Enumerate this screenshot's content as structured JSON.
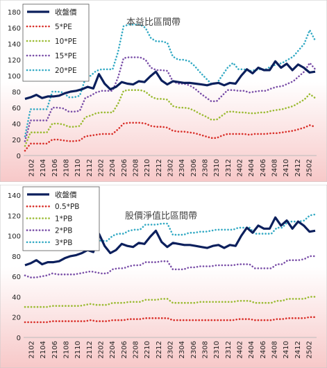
{
  "colors": {
    "background_gradient_top": "#ffffff",
    "background_gradient_bottom": "#f7c8c8",
    "price": "#0b1f5c",
    "band_1": "#d9302a",
    "band_2": "#9bbb33",
    "band_3": "#7a4fa8",
    "band_4": "#34aac4"
  },
  "chart_data": [
    {
      "type": "line",
      "title": "本益比區間帶",
      "ylim": [
        0,
        180
      ],
      "yticks": [
        0,
        20,
        40,
        60,
        80,
        100,
        120,
        140,
        160,
        180
      ],
      "xtick_labels": [
        "2102",
        "2104",
        "2106",
        "2108",
        "2110",
        "2112",
        "2202",
        "2204",
        "2206",
        "2208",
        "2210",
        "2212",
        "2302",
        "2304",
        "2306",
        "2308",
        "2310",
        "2312",
        "2402",
        "2404",
        "2406",
        "2408",
        "2410",
        "2412",
        "2502"
      ],
      "legend": [
        "收盤價",
        "5*PE",
        "10*PE",
        "15*PE",
        "20*PE"
      ],
      "series": [
        {
          "name": "收盤價",
          "style": "solid",
          "values": [
            71,
            73,
            76,
            72,
            74,
            74,
            75,
            78,
            80,
            81,
            83,
            86,
            84,
            102,
            90,
            83,
            86,
            92,
            90,
            89,
            93,
            92,
            99,
            105,
            94,
            89,
            93,
            92,
            91,
            91,
            90,
            89,
            88,
            90,
            91,
            88,
            91,
            90,
            100,
            108,
            103,
            110,
            107,
            107,
            118,
            110,
            115,
            107,
            114,
            110,
            104,
            105
          ]
        },
        {
          "name": "5*PE",
          "style": "dotted",
          "values": [
            6,
            15,
            15,
            15,
            15,
            20,
            20,
            19,
            18,
            18,
            19,
            24,
            25,
            26,
            27,
            27,
            27,
            33,
            40,
            41,
            41,
            41,
            40,
            37,
            36,
            36,
            35,
            31,
            30,
            30,
            29,
            28,
            26,
            24,
            22,
            22,
            25,
            27,
            27,
            27,
            27,
            26,
            27,
            27,
            27,
            28,
            28,
            29,
            30,
            31,
            33,
            35,
            38,
            36
          ]
        },
        {
          "name": "10*PE",
          "style": "dotted",
          "values": [
            12,
            29,
            29,
            29,
            29,
            40,
            40,
            39,
            36,
            36,
            37,
            48,
            50,
            53,
            54,
            54,
            54,
            65,
            81,
            82,
            82,
            82,
            80,
            74,
            71,
            71,
            70,
            62,
            60,
            60,
            59,
            56,
            52,
            49,
            45,
            45,
            50,
            55,
            55,
            54,
            54,
            53,
            53,
            54,
            54,
            56,
            57,
            58,
            60,
            62,
            66,
            70,
            77,
            72
          ]
        },
        {
          "name": "15*PE",
          "style": "dotted",
          "values": [
            18,
            44,
            44,
            44,
            44,
            60,
            60,
            59,
            55,
            55,
            56,
            72,
            75,
            79,
            81,
            81,
            81,
            98,
            122,
            123,
            123,
            123,
            120,
            110,
            107,
            107,
            106,
            93,
            90,
            90,
            88,
            84,
            78,
            73,
            68,
            68,
            75,
            82,
            82,
            81,
            81,
            79,
            80,
            81,
            81,
            84,
            86,
            87,
            90,
            93,
            99,
            105,
            116,
            108
          ]
        },
        {
          "name": "20*PE",
          "style": "dotted",
          "values": [
            24,
            58,
            58,
            58,
            58,
            80,
            80,
            79,
            73,
            73,
            75,
            96,
            100,
            106,
            108,
            108,
            108,
            130,
            162,
            164,
            164,
            164,
            160,
            147,
            143,
            143,
            141,
            124,
            120,
            120,
            118,
            112,
            104,
            97,
            90,
            90,
            100,
            110,
            116,
            108,
            108,
            106,
            107,
            108,
            108,
            112,
            114,
            116,
            120,
            124,
            132,
            140,
            157,
            144
          ]
        }
      ]
    },
    {
      "type": "line",
      "title": "股價淨值比區間帶",
      "ylim": [
        0,
        140
      ],
      "yticks": [
        0,
        20,
        40,
        60,
        80,
        100,
        120,
        140
      ],
      "xtick_labels": [
        "2102",
        "2104",
        "2106",
        "2108",
        "2110",
        "2112",
        "2202",
        "2204",
        "2206",
        "2208",
        "2210",
        "2212",
        "2302",
        "2304",
        "2306",
        "2308",
        "2310",
        "2312",
        "2402",
        "2404",
        "2406",
        "2408",
        "2410",
        "2412",
        "2502"
      ],
      "legend": [
        "收盤價",
        "0.5*PB",
        "1*PB",
        "2*PB",
        "3*PB"
      ],
      "series": [
        {
          "name": "收盤價",
          "style": "solid",
          "values": [
            71,
            73,
            76,
            72,
            74,
            74,
            75,
            78,
            80,
            81,
            83,
            86,
            84,
            102,
            90,
            83,
            86,
            92,
            90,
            89,
            93,
            92,
            99,
            105,
            94,
            89,
            93,
            92,
            91,
            91,
            90,
            89,
            88,
            90,
            91,
            88,
            91,
            90,
            100,
            108,
            103,
            110,
            107,
            107,
            118,
            110,
            115,
            107,
            114,
            110,
            104,
            105
          ]
        },
        {
          "name": "0.5*PB",
          "style": "dotted",
          "values": [
            15,
            15,
            15,
            15,
            15,
            16,
            16,
            16,
            16,
            16,
            16,
            16,
            17,
            16,
            16,
            16,
            17,
            17,
            17,
            18,
            18,
            18,
            19,
            19,
            19,
            19,
            19,
            17,
            17,
            17,
            17,
            17,
            17,
            17,
            17,
            17,
            17,
            17,
            17,
            18,
            18,
            18,
            17,
            17,
            17,
            17,
            18,
            18,
            19,
            19,
            19,
            19,
            20,
            20
          ]
        },
        {
          "name": "1*PB",
          "style": "dotted",
          "values": [
            30,
            30,
            30,
            30,
            30,
            31,
            31,
            31,
            31,
            31,
            31,
            32,
            33,
            32,
            32,
            32,
            34,
            34,
            34,
            35,
            35,
            35,
            37,
            37,
            37,
            38,
            38,
            34,
            34,
            34,
            34,
            34,
            35,
            35,
            35,
            35,
            35,
            35,
            35,
            36,
            36,
            36,
            34,
            34,
            34,
            34,
            36,
            36,
            38,
            38,
            38,
            38,
            40,
            40
          ]
        },
        {
          "name": "2*PB",
          "style": "dotted",
          "values": [
            61,
            59,
            59,
            60,
            61,
            63,
            62,
            62,
            62,
            62,
            63,
            64,
            65,
            64,
            63,
            63,
            67,
            68,
            68,
            70,
            71,
            71,
            74,
            74,
            74,
            75,
            75,
            67,
            67,
            67,
            69,
            69,
            70,
            70,
            70,
            71,
            71,
            71,
            71,
            72,
            72,
            72,
            68,
            68,
            68,
            68,
            72,
            72,
            76,
            76,
            76,
            77,
            80,
            80
          ]
        },
        {
          "name": "3*PB",
          "style": "dotted",
          "values": [
            91,
            89,
            89,
            90,
            92,
            94,
            93,
            93,
            93,
            93,
            94,
            97,
            98,
            96,
            95,
            95,
            100,
            102,
            102,
            105,
            106,
            106,
            111,
            111,
            111,
            112,
            112,
            101,
            101,
            101,
            103,
            103,
            104,
            104,
            105,
            106,
            106,
            106,
            106,
            108,
            108,
            108,
            102,
            102,
            102,
            102,
            108,
            108,
            114,
            114,
            114,
            115,
            120,
            121
          ]
        }
      ]
    }
  ]
}
